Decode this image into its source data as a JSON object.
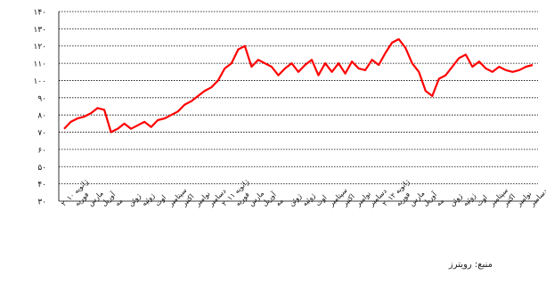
{
  "source_note": "منبع: رویترز",
  "chart_data": {
    "type": "line",
    "title": "",
    "xlabel": "",
    "ylabel": "",
    "ylim": [
      30,
      140
    ],
    "yticks": [
      30,
      40,
      50,
      60,
      70,
      80,
      90,
      100,
      110,
      120,
      130,
      140
    ],
    "ytick_labels": [
      "۳۰",
      "۴۰",
      "۵۰",
      "۶۰",
      "۷۰",
      "۸۰",
      "۹۰",
      "۱۰۰",
      "۱۱۰",
      "۱۲۰",
      "۱۳۰",
      "۱۴۰"
    ],
    "grid": true,
    "line_color": "#ff0000",
    "x_tick_labels": [
      "ژانویه ۲۰۱۰",
      "فوریه",
      "مارس",
      "آوریل",
      "مه",
      "ژوئن",
      "ژوئیه",
      "اوت",
      "سپتامبر",
      "اکتبر",
      "نوامبر",
      "دسامبر",
      "ژانویه ۲۰۱۱",
      "فوریه",
      "مارس",
      "آوریل",
      "مه",
      "ژوئن",
      "ژوئیه",
      "اوت",
      "سپتامبر",
      "اکتبر",
      "نوامبر",
      "دسامبر",
      "ژانویه ۲۰۱۲",
      "فوریه",
      "مارس",
      "آوریل",
      "مه",
      "ژوئن",
      "ژوئیه",
      "اوت",
      "سپتامبر",
      "اکتبر",
      "نوامبر",
      "دسامبر"
    ],
    "series": [
      {
        "x": [
          0,
          0.5,
          1,
          1.5,
          2,
          2.5,
          3,
          3.5,
          4,
          4.5,
          5,
          5.5,
          6,
          6.5,
          7,
          7.5,
          8,
          8.5,
          9,
          9.5,
          10,
          10.5,
          11,
          11.5,
          12,
          12.5,
          13,
          13.5,
          14,
          14.5,
          15,
          15.5,
          16,
          16.5,
          17,
          17.5,
          18,
          18.5,
          19,
          19.5,
          20,
          20.5,
          21,
          21.5,
          22,
          22.5,
          23,
          23.5,
          24,
          24.5,
          25,
          25.5,
          26,
          26.5,
          27,
          27.5,
          28,
          28.5,
          29,
          29.5,
          30,
          30.5,
          31,
          31.5,
          32,
          32.5,
          33,
          33.5,
          34,
          34.5,
          35
        ],
        "values": [
          72,
          76,
          78,
          79,
          81,
          84,
          83,
          70,
          72,
          75,
          72,
          74,
          76,
          73,
          77,
          78,
          80,
          82,
          86,
          88,
          91,
          94,
          96,
          100,
          107,
          110,
          118,
          120,
          108,
          112,
          110,
          108,
          103,
          107,
          110,
          105,
          109,
          112,
          103,
          110,
          105,
          110,
          104,
          111,
          107,
          106,
          112,
          109,
          116,
          122,
          124,
          119,
          110,
          105,
          94,
          91,
          101,
          103,
          108,
          113,
          115,
          108,
          111,
          107,
          105,
          108,
          106,
          105,
          106,
          108,
          109
        ]
      }
    ]
  }
}
